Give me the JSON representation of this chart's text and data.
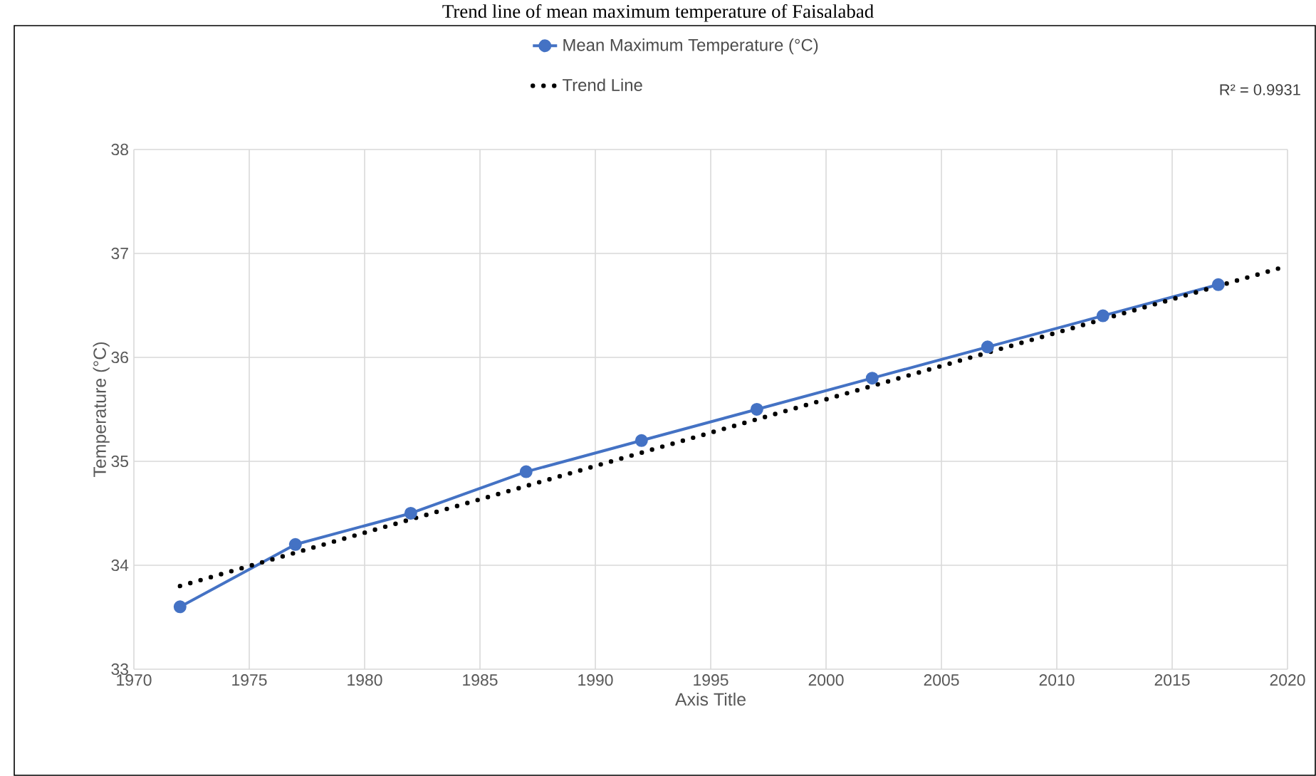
{
  "chart_data": {
    "type": "line",
    "title": "Trend line of mean maximum temperature of Faisalabad",
    "xlabel": "Axis Title",
    "ylabel": "Temperature (°C)",
    "x": [
      1972,
      1977,
      1982,
      1987,
      1992,
      1997,
      2002,
      2007,
      2012,
      2017
    ],
    "series": [
      {
        "name": "Mean Maximum Temperature (°C)",
        "color": "#4472c4",
        "values": [
          33.6,
          34.2,
          34.5,
          34.9,
          35.2,
          35.5,
          35.8,
          36.1,
          36.4,
          36.7
        ],
        "marker": "circle",
        "line_style": "solid"
      },
      {
        "name": "Trend Line",
        "color": "#000000",
        "type": "line",
        "x": [
          1972,
          2020
        ],
        "values": [
          33.8,
          36.88
        ],
        "marker": "none",
        "line_style": "dotted"
      }
    ],
    "xlim": [
      1970,
      2020
    ],
    "ylim": [
      33,
      38
    ],
    "xticks": [
      1970,
      1975,
      1980,
      1985,
      1990,
      1995,
      2000,
      2005,
      2010,
      2015,
      2020
    ],
    "yticks": [
      33,
      34,
      35,
      36,
      37,
      38
    ],
    "grid": true,
    "legend": "top",
    "annotations": [
      "R² = 0.9931"
    ]
  }
}
